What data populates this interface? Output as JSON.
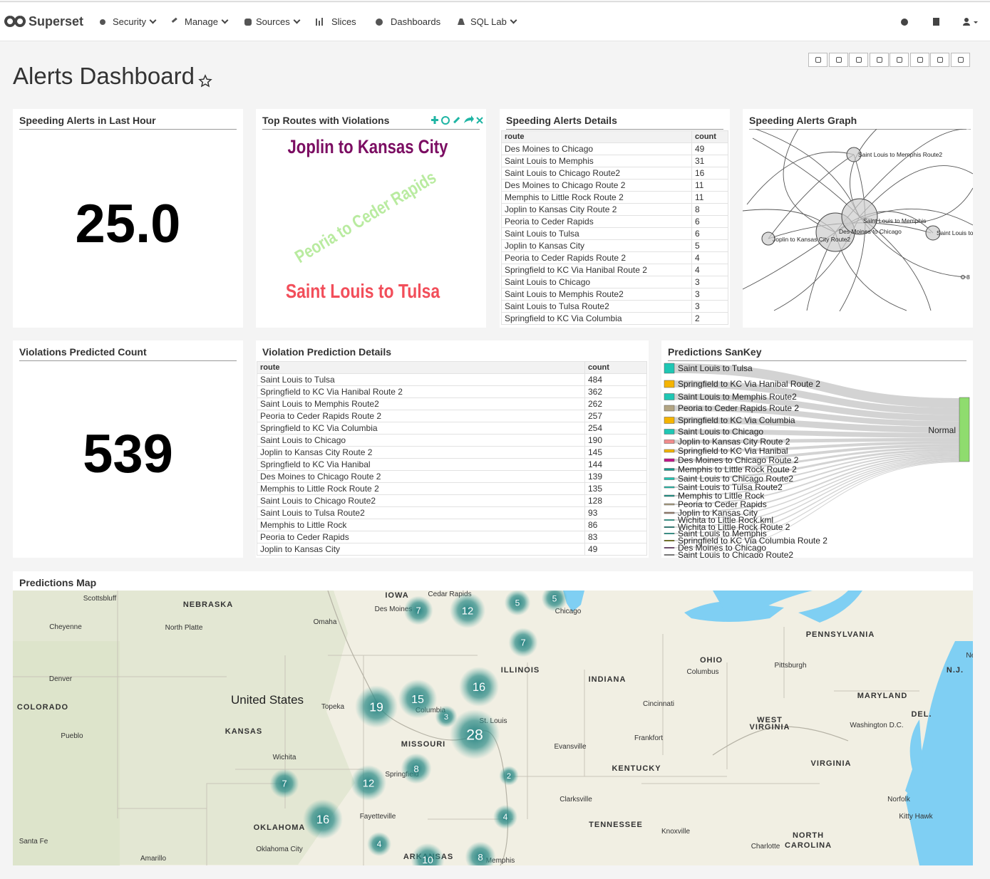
{
  "navbar": {
    "brand": "Superset",
    "menu": [
      "Security",
      "Manage",
      "Sources",
      "Slices",
      "Dashboards",
      "SQL Lab"
    ]
  },
  "dashboard": {
    "title": "Alerts Dashboard"
  },
  "panels": {
    "speeding_alerts_last_hour": {
      "title": "Speeding Alerts in Last Hour",
      "value": "25.0"
    },
    "top_routes": {
      "title": "Top Routes with Violations",
      "words": [
        "Joplin to Kansas City",
        "Peoria to Ceder Rapids",
        "Saint Louis to Tulsa"
      ]
    },
    "speeding_alerts_details": {
      "title": "Speeding Alerts Details",
      "columns": [
        "route",
        "count"
      ],
      "rows": [
        [
          "Des Moines to Chicago",
          49
        ],
        [
          "Saint Louis to Memphis",
          31
        ],
        [
          "Saint Louis to Chicago Route2",
          16
        ],
        [
          "Des Moines to Chicago Route 2",
          11
        ],
        [
          "Memphis to Little Rock Route 2",
          11
        ],
        [
          "Joplin to Kansas City Route 2",
          8
        ],
        [
          "Peoria to Ceder Rapids",
          6
        ],
        [
          "Saint Louis to Tulsa",
          6
        ],
        [
          "Joplin to Kansas City",
          5
        ],
        [
          "Peoria to Ceder Rapids Route 2",
          4
        ],
        [
          "Springfield to KC Via Hanibal Route 2",
          4
        ],
        [
          "Saint Louis to Chicago",
          3
        ],
        [
          "Saint Louis to Memphis Route2",
          3
        ],
        [
          "Saint Louis to Tulsa Route2",
          3
        ],
        [
          "Springfield to KC Via Columbia",
          2
        ]
      ]
    },
    "speeding_alerts_graph": {
      "title": "Speeding Alerts Graph",
      "node_labels": [
        "Saint Louis to Memphis Route2",
        "Saint Louis to Memphis",
        "Des Moines to Chicago",
        "Joplin to Kansas City Route2",
        "Saint Louis to",
        "8"
      ]
    },
    "violations_predicted_count": {
      "title": "Violations Predicted Count",
      "value": 539
    },
    "violation_prediction_details": {
      "title": "Violation Prediction Details",
      "columns": [
        "route",
        "count"
      ],
      "rows": [
        [
          "Saint Louis to Tulsa",
          484
        ],
        [
          "Springfield to KC Via Hanibal Route 2",
          362
        ],
        [
          "Saint Louis to Memphis Route2",
          262
        ],
        [
          "Peoria to Ceder Rapids Route 2",
          257
        ],
        [
          "Springfield to KC Via Columbia",
          254
        ],
        [
          "Saint Louis to Chicago",
          190
        ],
        [
          "Joplin to Kansas City Route 2",
          145
        ],
        [
          "Springfield to KC Via Hanibal",
          144
        ],
        [
          "Des Moines to Chicago Route 2",
          139
        ],
        [
          "Memphis to Little Rock Route 2",
          135
        ],
        [
          "Saint Louis to Chicago Route2",
          128
        ],
        [
          "Saint Louis to Tulsa Route2",
          93
        ],
        [
          "Memphis to Little Rock",
          86
        ],
        [
          "Peoria to Ceder Rapids",
          83
        ],
        [
          "Joplin to Kansas City",
          49
        ]
      ]
    },
    "predictions_sankey": {
      "title": "Predictions SanKey",
      "target": "Normal",
      "target_color": "#8fdc6e",
      "sources": [
        {
          "label": "Saint Louis to Tulsa",
          "color": "#1fc7b4"
        },
        {
          "label": "Springfield to KC Via Hanibal Route 2",
          "color": "#f5b400"
        },
        {
          "label": "Saint Louis to Memphis Route2",
          "color": "#1fc7b4"
        },
        {
          "label": "Peoria to Ceder Rapids Route 2",
          "color": "#b3a583"
        },
        {
          "label": "Springfield to KC Via Columbia",
          "color": "#f5b400"
        },
        {
          "label": "Saint Louis to Chicago",
          "color": "#1fc7b4"
        },
        {
          "label": "Joplin to Kansas City Route 2",
          "color": "#f28c8c"
        },
        {
          "label": "Springfield to KC Via Hanibal",
          "color": "#f5b400"
        },
        {
          "label": "Des Moines to Chicago Route 2",
          "color": "#c2158a"
        },
        {
          "label": "Memphis to Little Rock Route 2",
          "color": "#139c8e"
        },
        {
          "label": "Saint Louis to Chicago Route2",
          "color": "#1fc7b4"
        },
        {
          "label": "Saint Louis to Tulsa Route2",
          "color": "#1fc7b4"
        },
        {
          "label": "Memphis to Little Rock",
          "color": "#139c8e"
        },
        {
          "label": "Peoria to Ceder Rapids",
          "color": "#b3a583"
        },
        {
          "label": "Joplin to Kansas City",
          "color": "#a0826d"
        },
        {
          "label": "Wichita to Little Rock.kml",
          "color": "#1fc7b4"
        },
        {
          "label": "Wichita to Little Rock Route 2",
          "color": "#139c8e"
        },
        {
          "label": "Saint Louis to Memphis",
          "color": "#1fc7b4"
        },
        {
          "label": "Springfield to KC Via Columbia Route 2",
          "color": "#8c8c00"
        },
        {
          "label": "Des Moines to Chicago",
          "color": "#5e0a5e"
        },
        {
          "label": "Saint Louis to Chicago Route2",
          "color": "#333333"
        }
      ]
    },
    "predictions_map": {
      "title": "Predictions Map",
      "places": [
        "Scottsbluff",
        "NEBRASKA",
        "IOWA",
        "Cedar Rapids",
        "Des Moines",
        "Omaha",
        "Cheyenne",
        "North Platte",
        "Chicago",
        "PENNSYLVANIA",
        "OHIO",
        "Columbus",
        "ILLINOIS",
        "Pittsburgh",
        "New Y",
        "N.J.",
        "Denver",
        "INDIANA",
        "United States",
        "Topeka",
        "Columbia",
        "St. Louis",
        "COLORADO",
        "KANSAS",
        "MISSOURI",
        "Cincinnati",
        "MARYLAND",
        "DEL.",
        "WEST",
        "VIRGINIA",
        "Washington D.C.",
        "Frankfort",
        "Pueblo",
        "Evansville",
        "Wichita",
        "KENTUCKY",
        "VIRGINIA",
        "Springfield",
        "Clarksville",
        "Norfolk",
        "Fayetteville",
        "Kitty Hawk",
        "TENNESSEE",
        "OKLAHOMA",
        "Knoxville",
        "NORTH",
        "CAROLINA",
        "Santa Fe",
        "Oklahoma City",
        "Charlotte",
        "Amarillo",
        "ARKANSAS",
        "Memphis"
      ],
      "clusters": [
        7,
        12,
        5,
        5,
        7,
        16,
        19,
        15,
        3,
        28,
        8,
        2,
        7,
        12,
        4,
        16,
        4,
        8,
        10
      ]
    }
  }
}
